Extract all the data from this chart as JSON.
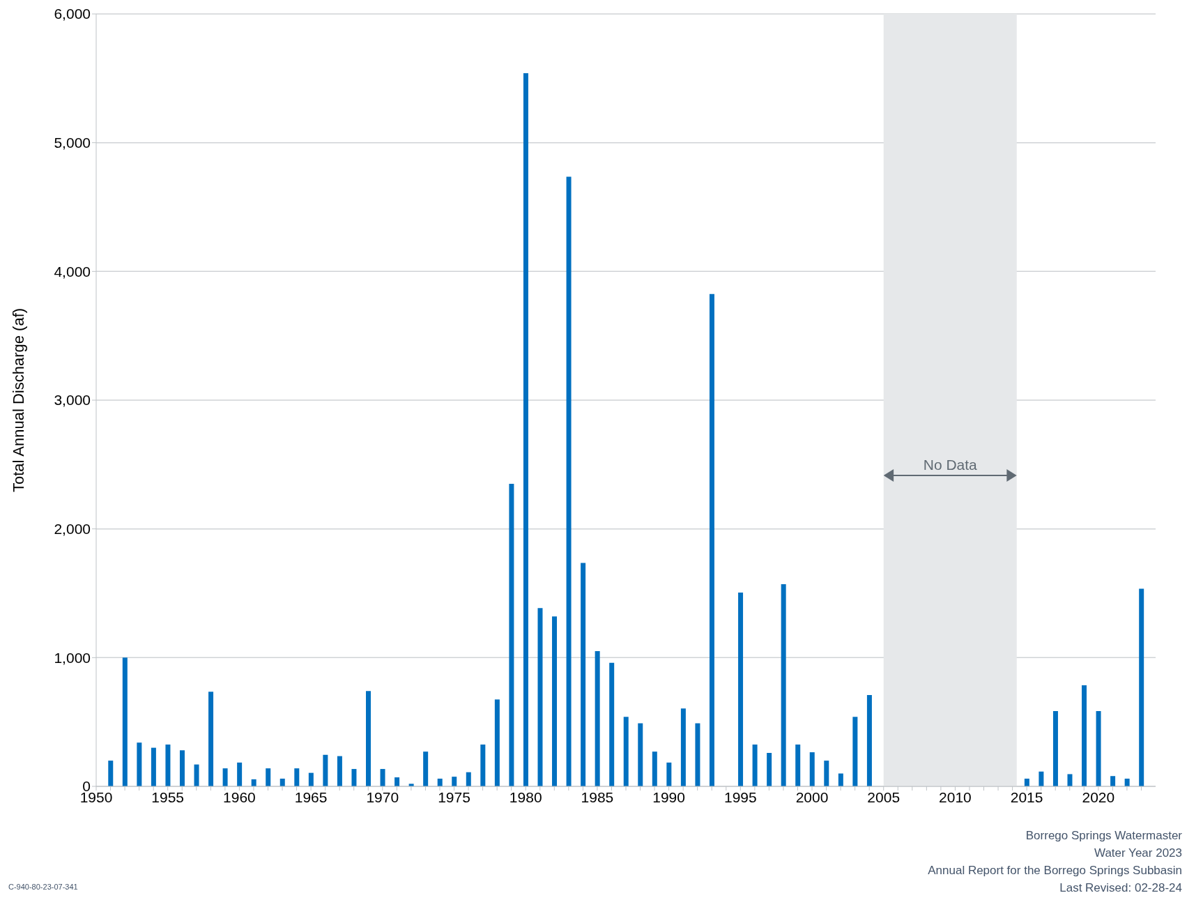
{
  "chart_data": {
    "type": "bar",
    "ylabel": "Total Annual Discharge (af)",
    "x": [
      1951,
      1952,
      1953,
      1954,
      1955,
      1956,
      1957,
      1958,
      1959,
      1960,
      1961,
      1962,
      1963,
      1964,
      1965,
      1966,
      1967,
      1968,
      1969,
      1970,
      1971,
      1972,
      1973,
      1974,
      1975,
      1976,
      1977,
      1978,
      1979,
      1980,
      1981,
      1982,
      1983,
      1984,
      1985,
      1986,
      1987,
      1988,
      1989,
      1990,
      1991,
      1992,
      1993,
      1994,
      1995,
      1996,
      1997,
      1998,
      1999,
      2000,
      2001,
      2002,
      2003,
      2004,
      2015,
      2016,
      2017,
      2018,
      2019,
      2020,
      2021,
      2022,
      2023
    ],
    "values": [
      200,
      1000,
      340,
      300,
      325,
      280,
      170,
      735,
      140,
      185,
      55,
      140,
      60,
      140,
      105,
      245,
      235,
      135,
      740,
      135,
      70,
      20,
      270,
      60,
      75,
      110,
      325,
      675,
      2350,
      5540,
      1385,
      1320,
      4735,
      1735,
      1050,
      960,
      540,
      490,
      270,
      185,
      605,
      490,
      3825,
      null,
      1505,
      325,
      260,
      1570,
      325,
      265,
      200,
      100,
      540,
      710,
      60,
      115,
      585,
      95,
      785,
      585,
      80,
      60,
      1535
    ],
    "color": "#0070c0",
    "xlim": [
      1950,
      2024
    ],
    "xticks": [
      1950,
      {
        "value": 1951,
        "label": null
      },
      {
        "value": 1952,
        "label": null
      },
      {
        "value": 1953,
        "label": null
      },
      {
        "value": 1954,
        "label": null
      },
      1955,
      {
        "value": 1956,
        "label": null
      },
      {
        "value": 1957,
        "label": null
      },
      {
        "value": 1958,
        "label": null
      },
      {
        "value": 1959,
        "label": null
      },
      1960,
      {
        "value": 1961,
        "label": null
      },
      {
        "value": 1962,
        "label": null
      },
      {
        "value": 1963,
        "label": null
      },
      {
        "value": 1964,
        "label": null
      },
      1965,
      {
        "value": 1966,
        "label": null
      },
      {
        "value": 1967,
        "label": null
      },
      {
        "value": 1968,
        "label": null
      },
      {
        "value": 1969,
        "label": null
      },
      1970,
      {
        "value": 1971,
        "label": null
      },
      {
        "value": 1972,
        "label": null
      },
      {
        "value": 1973,
        "label": null
      },
      {
        "value": 1974,
        "label": null
      },
      1975,
      {
        "value": 1976,
        "label": null
      },
      {
        "value": 1977,
        "label": null
      },
      {
        "value": 1978,
        "label": null
      },
      {
        "value": 1979,
        "label": null
      },
      1980,
      {
        "value": 1981,
        "label": null
      },
      {
        "value": 1982,
        "label": null
      },
      {
        "value": 1983,
        "label": null
      },
      {
        "value": 1984,
        "label": null
      },
      1985,
      {
        "value": 1986,
        "label": null
      },
      {
        "value": 1987,
        "label": null
      },
      {
        "value": 1988,
        "label": null
      },
      {
        "value": 1989,
        "label": null
      },
      1990,
      {
        "value": 1991,
        "label": null
      },
      {
        "value": 1992,
        "label": null
      },
      {
        "value": 1993,
        "label": null
      },
      {
        "value": 1994,
        "label": null
      },
      1995,
      {
        "value": 1996,
        "label": null
      },
      {
        "value": 1997,
        "label": null
      },
      {
        "value": 1998,
        "label": null
      },
      {
        "value": 1999,
        "label": null
      },
      2000,
      {
        "value": 2001,
        "label": null
      },
      {
        "value": 2002,
        "label": null
      },
      {
        "value": 2003,
        "label": null
      },
      {
        "value": 2004,
        "label": null
      },
      2005,
      {
        "value": 2006,
        "label": null
      },
      {
        "value": 2007,
        "label": null
      },
      {
        "value": 2008,
        "label": null
      },
      {
        "value": 2009,
        "label": null
      },
      2010,
      {
        "value": 2011,
        "label": null
      },
      {
        "value": 2012,
        "label": null
      },
      {
        "value": 2013,
        "label": null
      },
      {
        "value": 2014,
        "label": null
      },
      2015,
      {
        "value": 2016,
        "label": null
      },
      {
        "value": 2017,
        "label": null
      },
      {
        "value": 2018,
        "label": null
      },
      {
        "value": 2019,
        "label": null
      },
      2020,
      {
        "value": 2021,
        "label": null
      },
      {
        "value": 2022,
        "label": null
      },
      {
        "value": 2023,
        "label": null
      }
    ],
    "ylim": [
      0,
      6000
    ],
    "yticks": [
      {
        "value": 0,
        "label": "0"
      },
      {
        "value": 1000,
        "label": "1,000"
      },
      {
        "value": 2000,
        "label": "2,000"
      },
      {
        "value": 3000,
        "label": "3,000"
      },
      {
        "value": 4000,
        "label": "4,000"
      },
      {
        "value": 5000,
        "label": "5,000"
      },
      {
        "value": 6000,
        "label": "6,000"
      }
    ],
    "grid": "y",
    "bands": [
      {
        "axis": "x",
        "from": 2005,
        "to": 2014.3,
        "label": "No Data",
        "color": "#e6e8ea"
      }
    ],
    "annotations": [
      "Borrego Springs Watermaster",
      "Water Year 2023",
      "Annual Report for the Borrego Springs Subbasin",
      "Last Revised: 02-28-24",
      "C-940-80-23-07-341"
    ]
  }
}
